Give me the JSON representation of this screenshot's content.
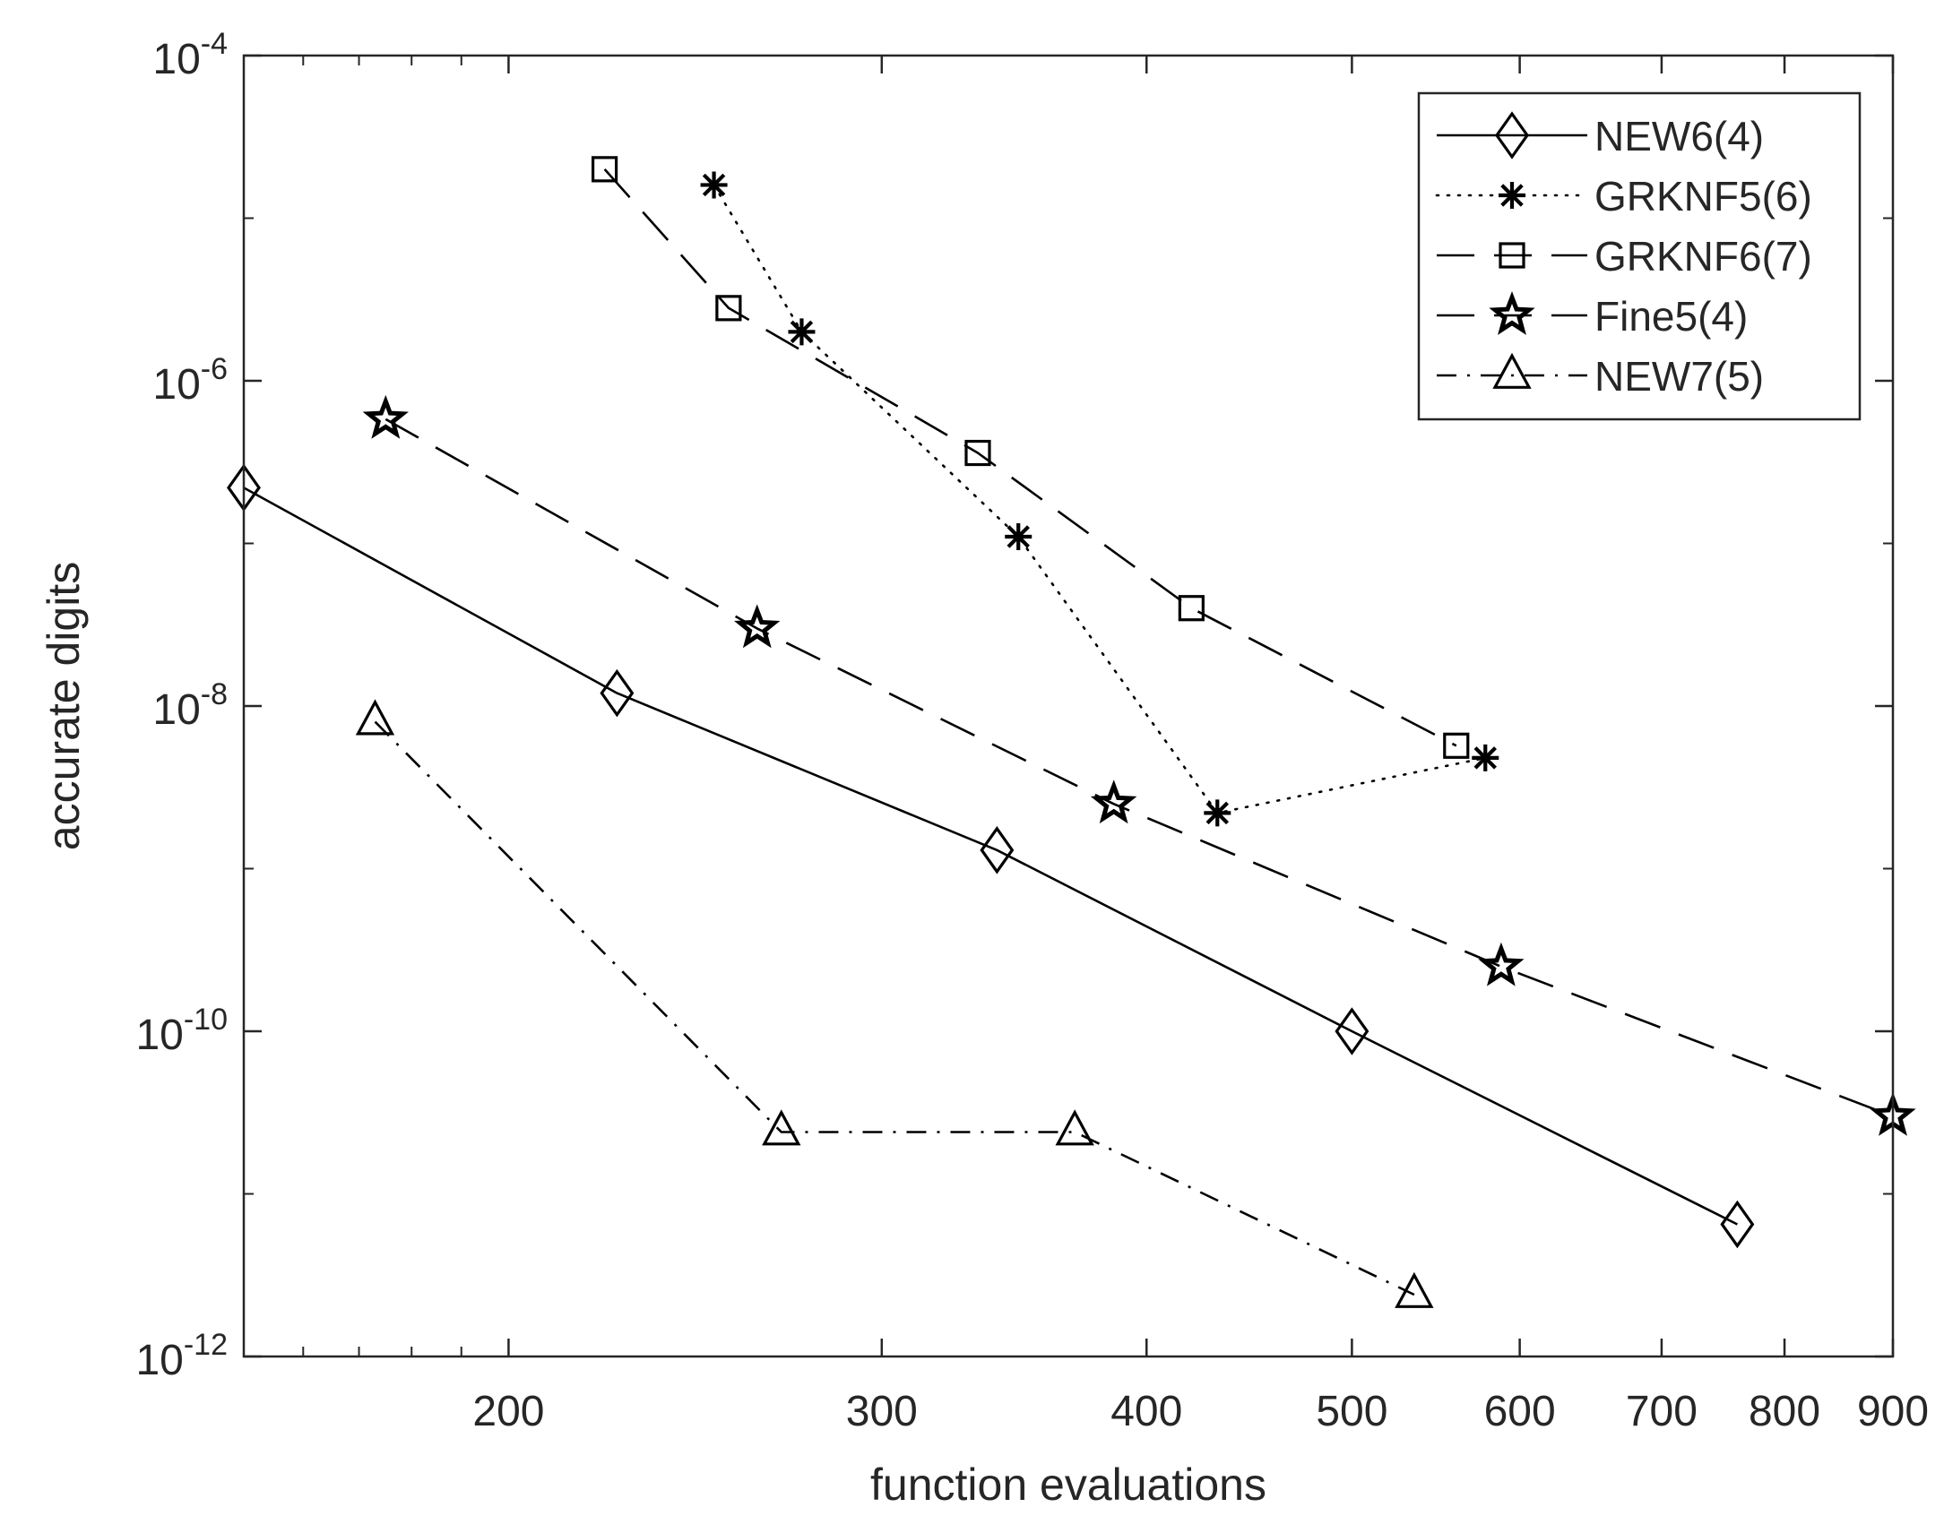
{
  "chart_data": {
    "type": "line",
    "title": "",
    "xlabel": "function evaluations",
    "ylabel": "accurate digits",
    "xscale": "log",
    "yscale": "log",
    "xlim": [
      150,
      900
    ],
    "ylim": [
      1e-12,
      0.0001
    ],
    "xticks": [
      200,
      300,
      400,
      500,
      600,
      700,
      800,
      900
    ],
    "xtick_labels": [
      "200",
      "300",
      "400",
      "500",
      "600",
      "700",
      "800",
      "900"
    ],
    "yticks": [
      {
        "value": 1e-12,
        "base": "10",
        "exp": "-12"
      },
      {
        "value": 1e-10,
        "base": "10",
        "exp": "-10"
      },
      {
        "value": 1e-08,
        "base": "10",
        "exp": "-8"
      },
      {
        "value": 1e-06,
        "base": "10",
        "exp": "-6"
      },
      {
        "value": 0.0001,
        "base": "10",
        "exp": "-4"
      }
    ],
    "grid": false,
    "legend_position": "top-right",
    "series": [
      {
        "name": "NEW6(4)",
        "marker": "diamond",
        "dash": "solid",
        "x": [
          150,
          225,
          340,
          500,
          760
        ],
        "y": [
          2.2e-07,
          1.2e-08,
          1.3e-09,
          1e-10,
          6.5e-12
        ]
      },
      {
        "name": "GRKNF5(6)",
        "marker": "asterisk",
        "dash": "dotted",
        "x": [
          250,
          275,
          348,
          432,
          578
        ],
        "y": [
          1.6e-05,
          2e-06,
          1.1e-07,
          2.2e-09,
          4.8e-09
        ]
      },
      {
        "name": "GRKNF6(7)",
        "marker": "square",
        "dash": "dashed",
        "x": [
          222,
          254,
          333,
          420,
          560
        ],
        "y": [
          2e-05,
          2.8e-06,
          3.6e-07,
          4e-08,
          5.7e-09
        ]
      },
      {
        "name": "Fine5(4)",
        "marker": "star",
        "dash": "dashed",
        "x": [
          175,
          262,
          386,
          588,
          900
        ],
        "y": [
          5.8e-07,
          3e-08,
          2.5e-09,
          2.5e-10,
          3e-11
        ]
      },
      {
        "name": "NEW7(5)",
        "marker": "triangle",
        "dash": "dashdot",
        "x": [
          173,
          269,
          370,
          535
        ],
        "y": [
          8e-09,
          2.4e-11,
          2.4e-11,
          2.4e-12
        ]
      }
    ]
  }
}
